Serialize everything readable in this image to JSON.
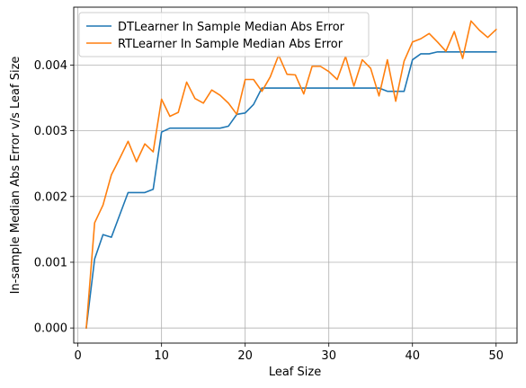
{
  "chart_data": {
    "type": "line",
    "title": "",
    "xlabel": "Leaf Size",
    "ylabel": "In-sample Median Abs Error v/s Leaf Size",
    "xlim": [
      -0.5,
      52.5
    ],
    "ylim": [
      -0.00023,
      0.00488
    ],
    "xticks": [
      0,
      10,
      20,
      30,
      40,
      50
    ],
    "xtick_labels": [
      "0",
      "10",
      "20",
      "30",
      "40",
      "50"
    ],
    "yticks": [
      0.0,
      0.001,
      0.002,
      0.003,
      0.004
    ],
    "ytick_labels": [
      "0.000",
      "0.001",
      "0.002",
      "0.003",
      "0.004"
    ],
    "grid": true,
    "legend_position": "top-left",
    "x": [
      1,
      2,
      3,
      4,
      5,
      6,
      7,
      8,
      9,
      10,
      11,
      12,
      13,
      14,
      15,
      16,
      17,
      18,
      19,
      20,
      21,
      22,
      23,
      24,
      25,
      26,
      27,
      28,
      29,
      30,
      31,
      32,
      33,
      34,
      35,
      36,
      37,
      38,
      39,
      40,
      41,
      42,
      43,
      44,
      45,
      46,
      47,
      48,
      49,
      50
    ],
    "series": [
      {
        "name": "DTLearner In Sample Median Abs Error",
        "color": "#1f77b4",
        "values": [
          0.0,
          0.00105,
          0.00142,
          0.00138,
          0.00172,
          0.00206,
          0.00206,
          0.00206,
          0.00211,
          0.00298,
          0.00304,
          0.00304,
          0.00304,
          0.00304,
          0.00304,
          0.00304,
          0.00304,
          0.00307,
          0.00325,
          0.00327,
          0.0034,
          0.00365,
          0.00365,
          0.00365,
          0.00365,
          0.00365,
          0.00365,
          0.00365,
          0.00365,
          0.00365,
          0.00365,
          0.00365,
          0.00365,
          0.00365,
          0.00365,
          0.00365,
          0.0036,
          0.0036,
          0.0036,
          0.00408,
          0.00417,
          0.00417,
          0.0042,
          0.0042,
          0.0042,
          0.0042,
          0.0042,
          0.0042,
          0.0042,
          0.0042
        ]
      },
      {
        "name": "RTLearner In Sample Median Abs Error",
        "color": "#ff7f0e",
        "values": [
          0.0,
          0.0016,
          0.00187,
          0.00233,
          0.00258,
          0.00284,
          0.00253,
          0.0028,
          0.00268,
          0.00348,
          0.00322,
          0.00328,
          0.00374,
          0.00349,
          0.00342,
          0.00362,
          0.00354,
          0.00342,
          0.00325,
          0.00378,
          0.00378,
          0.0036,
          0.00382,
          0.00415,
          0.00386,
          0.00385,
          0.00356,
          0.00398,
          0.00398,
          0.0039,
          0.00378,
          0.00413,
          0.00368,
          0.00408,
          0.00395,
          0.00353,
          0.00408,
          0.00345,
          0.00406,
          0.00435,
          0.0044,
          0.00448,
          0.00435,
          0.00421,
          0.00451,
          0.0041,
          0.00467,
          0.00453,
          0.00442,
          0.00454
        ]
      }
    ]
  }
}
